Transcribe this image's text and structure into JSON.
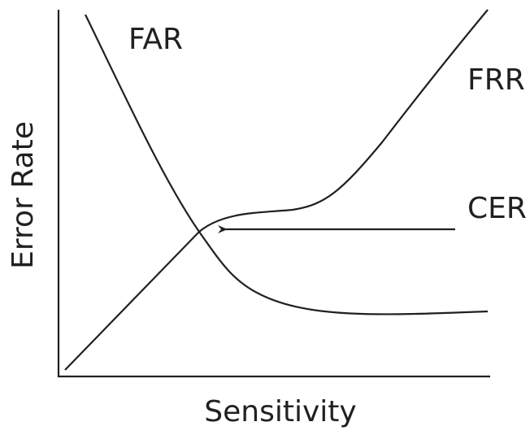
{
  "axes": {
    "y_label": "Error Rate",
    "x_label": "Sensitivity"
  },
  "curves": {
    "far": "FAR",
    "frr": "FRR",
    "cer": "CER"
  }
}
